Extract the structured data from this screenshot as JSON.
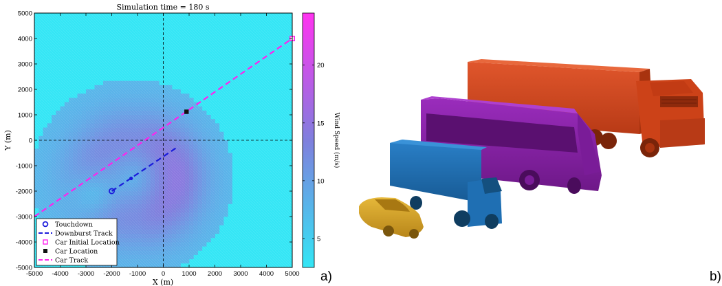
{
  "chart_data": {
    "type": "heatmap",
    "title": "Simulation time = 180 s",
    "xlabel": "X (m)",
    "ylabel": "Y (m)",
    "xlim": [
      -5000,
      5000
    ],
    "ylim": [
      -5000,
      5000
    ],
    "xticks": [
      -5000,
      -4000,
      -3000,
      -2000,
      -1000,
      0,
      1000,
      2000,
      3000,
      4000,
      5000
    ],
    "yticks": [
      -5000,
      -4000,
      -3000,
      -2000,
      -1000,
      0,
      1000,
      2000,
      3000,
      4000,
      5000
    ],
    "colorbar": {
      "label": "Wind Speed (m/s)",
      "ticks": [
        5,
        10,
        15,
        20
      ],
      "range": [
        2.5,
        24.5
      ],
      "color_low": "#33e6f5",
      "color_mid": "#7f7fdd",
      "color_high": "#ff33f0"
    },
    "field": {
      "background_speed": 7.5,
      "outflow_center": [
        -1200,
        -1500
      ],
      "outflow_radius": 3900,
      "max_speed": 15.5,
      "calm_center": [
        -2700,
        -2100
      ]
    },
    "series": [
      {
        "name": "Touchdown",
        "kind": "marker",
        "points": [
          [
            -2000,
            -2000
          ]
        ]
      },
      {
        "name": "Downburst Track",
        "kind": "line",
        "points": [
          [
            -2000,
            -2000
          ],
          [
            500,
            -300
          ]
        ],
        "current": [
          -1250,
          -1500
        ]
      },
      {
        "name": "Car Initial Location",
        "kind": "marker",
        "points": [
          [
            5000,
            4000
          ]
        ]
      },
      {
        "name": "Car Location",
        "kind": "marker",
        "points": [
          [
            900,
            1120
          ]
        ]
      },
      {
        "name": "Car Track",
        "kind": "line",
        "points": [
          [
            -5000,
            -3000
          ],
          [
            5000,
            4000
          ]
        ]
      }
    ],
    "legend_position": "bottom-left",
    "reference_lines": {
      "x": 0,
      "y": 0
    }
  },
  "labels": {
    "panel_a": "a)",
    "panel_b": "b)"
  },
  "vehicles": [
    {
      "name": "truck",
      "color": "#d4481f"
    },
    {
      "name": "bus",
      "color": "#8a20a8"
    },
    {
      "name": "van",
      "color": "#1f6fb3"
    },
    {
      "name": "car",
      "color": "#d4a526"
    }
  ]
}
